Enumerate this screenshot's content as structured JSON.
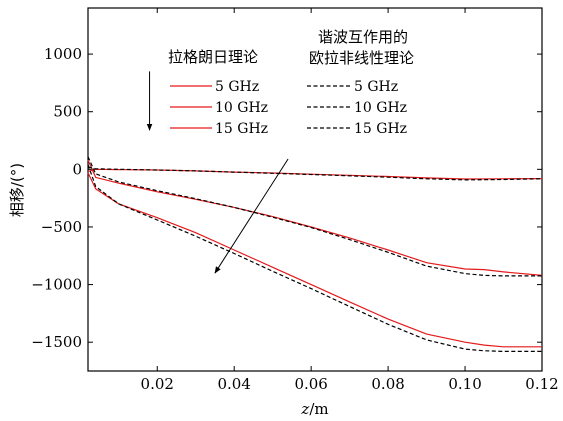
{
  "chart_data": {
    "type": "line",
    "xlabel_italic": "z",
    "xlabel_rest": "/m",
    "ylabel": "相移/(°)",
    "xlim": [
      0.002,
      0.12
    ],
    "ylim": [
      -1750,
      1400
    ],
    "xticks": [
      0.02,
      0.04,
      0.06,
      0.08,
      0.1,
      0.12
    ],
    "xtick_labels": [
      "0.02",
      "0.04",
      "0.06",
      "0.08",
      "0.10",
      "0.12"
    ],
    "yticks": [
      1000,
      500,
      0,
      -500,
      -1000,
      -1500
    ],
    "ytick_labels": [
      "1000",
      "500",
      "0",
      "−500",
      "−1000",
      "−1500"
    ],
    "grid": false,
    "legend_placement": "top",
    "legend": {
      "group_left_title": "拉格朗日理论",
      "group_right_title_line1": "谐波互作用的",
      "group_right_title_line2": "欧拉非线性理论",
      "entries_left": [
        "5 GHz",
        "10 GHz",
        "15 GHz"
      ],
      "entries_right": [
        "5 GHz",
        "10 GHz",
        "15 GHz"
      ]
    },
    "series": [
      {
        "group": "拉格朗日理论",
        "name": "5 GHz",
        "color": "#e41a1c",
        "dash": "solid",
        "x": [
          0.002,
          0.004,
          0.01,
          0.02,
          0.03,
          0.04,
          0.05,
          0.06,
          0.07,
          0.08,
          0.09,
          0.1,
          0.11,
          0.12
        ],
        "y": [
          -20,
          0,
          -2,
          -6,
          -14,
          -24,
          -32,
          -42,
          -52,
          -62,
          -74,
          -84,
          -82,
          -80
        ]
      },
      {
        "group": "拉格朗日理论",
        "name": "10 GHz",
        "color": "#e41a1c",
        "dash": "solid",
        "x": [
          0.002,
          0.004,
          0.01,
          0.02,
          0.03,
          0.04,
          0.05,
          0.06,
          0.07,
          0.08,
          0.09,
          0.1,
          0.105,
          0.11,
          0.12
        ],
        "y": [
          80,
          -70,
          -120,
          -195,
          -260,
          -330,
          -410,
          -500,
          -595,
          -700,
          -810,
          -865,
          -870,
          -890,
          -920
        ]
      },
      {
        "group": "拉格朗日理论",
        "name": "15 GHz",
        "color": "#e41a1c",
        "dash": "solid",
        "x": [
          0.002,
          0.004,
          0.01,
          0.02,
          0.03,
          0.04,
          0.05,
          0.06,
          0.07,
          0.08,
          0.09,
          0.1,
          0.105,
          0.11,
          0.12
        ],
        "y": [
          -30,
          -170,
          -300,
          -420,
          -550,
          -700,
          -850,
          -1000,
          -1150,
          -1300,
          -1430,
          -1500,
          -1525,
          -1540,
          -1540
        ]
      },
      {
        "group": "谐波互作用的欧拉非线性理论",
        "name": "5 GHz",
        "color": "#000000",
        "dash": "dashed",
        "x": [
          0.002,
          0.004,
          0.01,
          0.02,
          0.03,
          0.04,
          0.05,
          0.06,
          0.07,
          0.08,
          0.09,
          0.1,
          0.11,
          0.12
        ],
        "y": [
          20,
          5,
          0,
          -6,
          -14,
          -24,
          -34,
          -45,
          -56,
          -68,
          -82,
          -92,
          -88,
          -82
        ]
      },
      {
        "group": "谐波互作用的欧拉非线性理论",
        "name": "10 GHz",
        "color": "#000000",
        "dash": "dashed",
        "x": [
          0.002,
          0.004,
          0.01,
          0.02,
          0.03,
          0.04,
          0.05,
          0.06,
          0.07,
          0.08,
          0.09,
          0.1,
          0.105,
          0.11,
          0.12
        ],
        "y": [
          110,
          -40,
          -110,
          -185,
          -255,
          -330,
          -415,
          -505,
          -610,
          -720,
          -840,
          -905,
          -920,
          -925,
          -925
        ]
      },
      {
        "group": "谐波互作用的欧拉非线性理论",
        "name": "15 GHz",
        "color": "#000000",
        "dash": "dashed",
        "x": [
          0.002,
          0.004,
          0.01,
          0.02,
          0.03,
          0.04,
          0.05,
          0.06,
          0.07,
          0.08,
          0.09,
          0.1,
          0.105,
          0.11,
          0.12
        ],
        "y": [
          40,
          -150,
          -300,
          -440,
          -580,
          -730,
          -885,
          -1035,
          -1190,
          -1345,
          -1480,
          -1560,
          -1575,
          -1580,
          -1580
        ]
      }
    ],
    "annotations": [
      {
        "type": "arrow",
        "from": [
          0.018,
          850
        ],
        "to": [
          0.018,
          340
        ]
      },
      {
        "type": "arrow",
        "from": [
          0.054,
          90
        ],
        "to": [
          0.035,
          -900
        ]
      }
    ]
  }
}
